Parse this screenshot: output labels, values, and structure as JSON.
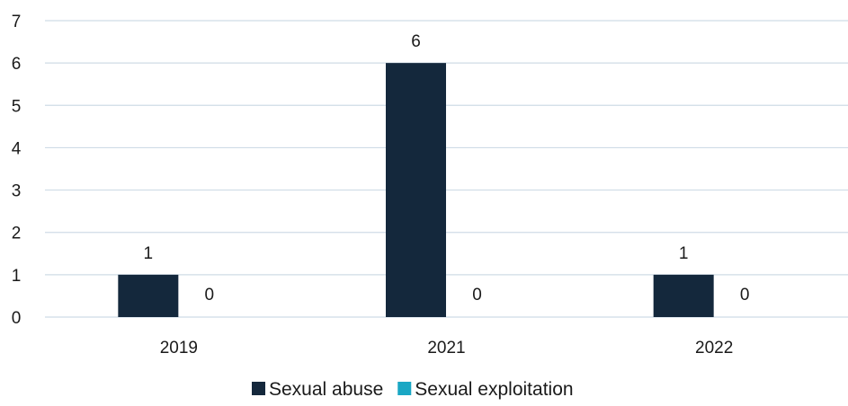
{
  "chart_data": {
    "type": "bar",
    "categories": [
      "2019",
      "2021",
      "2022"
    ],
    "series": [
      {
        "name": "Sexual abuse",
        "values": [
          1,
          6,
          1
        ],
        "color": "#14283c"
      },
      {
        "name": "Sexual exploitation",
        "values": [
          0,
          0,
          0
        ],
        "color": "#1aa7c4"
      }
    ],
    "ylim": [
      0,
      7
    ],
    "yticks": [
      0,
      1,
      2,
      3,
      4,
      5,
      6,
      7
    ],
    "grid": true,
    "data_labels": true,
    "legend_position": "bottom-center"
  }
}
